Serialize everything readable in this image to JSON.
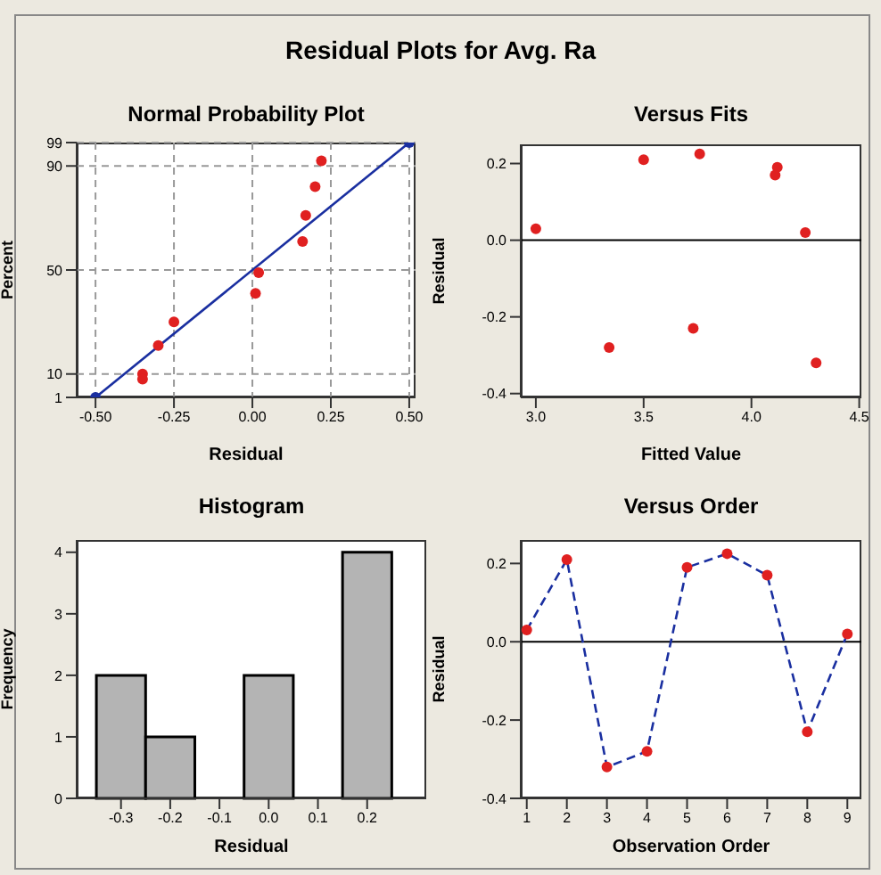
{
  "chart_data": [
    {
      "type": "scatter",
      "title": "Normal Probability Plot",
      "annotations": [
        "Residual Plots for Avg. Ra"
      ],
      "xlabel": "Residual",
      "ylabel": "Percent",
      "xlim": [
        -0.56,
        0.52
      ],
      "ylim": [
        1,
        99
      ],
      "xticks": [
        {
          "value": -0.5,
          "label": "-0.50"
        },
        -0.25,
        {
          "value": 0,
          "label": "0.00"
        },
        0.25,
        {
          "value": 0.5,
          "label": "0.50"
        }
      ],
      "yticks": [
        1,
        10,
        50,
        90,
        99
      ],
      "grid": true,
      "marker": "circle",
      "series": [
        {
          "type": "scatter",
          "color": "#e02020",
          "x": [
            -0.35,
            -0.35,
            -0.3,
            -0.25,
            0.01,
            0.02,
            0.16,
            0.17,
            0.2,
            0.22
          ],
          "values": [
            10,
            8,
            21,
            30,
            41,
            49,
            61,
            71,
            82,
            92
          ]
        },
        {
          "type": "line",
          "color": "#1a2fa0",
          "x": [
            -0.5,
            0.5
          ],
          "values": [
            1,
            99
          ]
        }
      ]
    },
    {
      "type": "scatter",
      "title": "Versus Fits",
      "xlabel": "Fitted Value",
      "ylabel": "Residual",
      "xlim": [
        2.93,
        4.51
      ],
      "ylim": [
        -0.41,
        0.25
      ],
      "xticks": [
        {
          "value": 3,
          "label": "3.0"
        },
        3.5,
        {
          "value": 4,
          "label": "4.0"
        },
        4.5
      ],
      "yticks": [
        -0.4,
        -0.2,
        {
          "value": 0,
          "label": "0.0"
        },
        0.2
      ],
      "marker": "circle",
      "ref_lines": [
        {
          "axis": "y",
          "value": 0,
          "color": "#000000"
        }
      ],
      "series": [
        {
          "type": "scatter",
          "color": "#e02020",
          "x": [
            3.0,
            3.5,
            4.3,
            3.34,
            4.12,
            3.76,
            4.11,
            3.73,
            4.25
          ],
          "values": [
            0.03,
            0.21,
            -0.32,
            -0.28,
            0.19,
            0.225,
            0.17,
            -0.23,
            0.02
          ]
        }
      ]
    },
    {
      "type": "histogram",
      "title": "Histogram",
      "xlabel": "Residual",
      "ylabel": "Frequency",
      "xlim": [
        -0.39,
        0.32
      ],
      "ylim": [
        0,
        4.2
      ],
      "xticks": [
        -0.3,
        -0.2,
        -0.1,
        {
          "value": 0,
          "label": "0.0"
        },
        0.1,
        0.2
      ],
      "yticks": [
        0,
        1,
        2,
        3,
        4
      ],
      "color": "#b4b4b4",
      "bins": [
        -0.35,
        -0.25,
        -0.15,
        -0.05,
        0.05,
        0.15,
        0.25
      ],
      "values": [
        2,
        1,
        0,
        2,
        0,
        4
      ]
    },
    {
      "type": "line",
      "title": "Versus Order",
      "xlabel": "Observation Order",
      "ylabel": "Residual",
      "xlim": [
        0.85,
        9.35
      ],
      "ylim": [
        -0.4,
        0.26
      ],
      "xticks": [
        1,
        2,
        3,
        4,
        5,
        6,
        7,
        8,
        9
      ],
      "yticks": [
        -0.4,
        -0.2,
        {
          "value": 0,
          "label": "0.0"
        },
        0.2
      ],
      "ref_lines": [
        {
          "axis": "y",
          "value": 0,
          "color": "#000000"
        }
      ],
      "series": [
        {
          "type": "line",
          "color": "#1a2fa0",
          "line_style": "dashed",
          "marker": "none",
          "x": [
            1,
            2,
            3,
            4,
            5,
            6,
            7,
            8,
            9
          ],
          "values": [
            0.03,
            0.21,
            -0.32,
            -0.28,
            0.19,
            0.225,
            0.17,
            -0.23,
            0.02
          ]
        },
        {
          "type": "scatter",
          "color": "#e02020",
          "marker": "circle",
          "x": [
            1,
            2,
            3,
            4,
            5,
            6,
            7,
            8,
            9
          ],
          "values": [
            0.03,
            0.21,
            -0.32,
            -0.28,
            0.19,
            0.225,
            0.17,
            -0.23,
            0.02
          ]
        }
      ]
    }
  ]
}
